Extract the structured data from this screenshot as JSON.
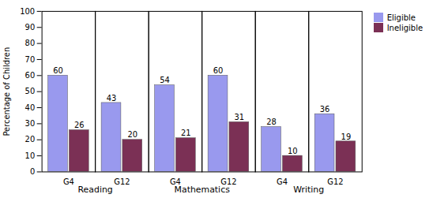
{
  "chart_data": {
    "type": "bar",
    "ylabel": "Percentage of Children",
    "groups": [
      "Reading",
      "Mathematics",
      "Writing"
    ],
    "categories": [
      "G4",
      "G12",
      "G4",
      "G12",
      "G4",
      "G12"
    ],
    "series": [
      {
        "name": "Eligible",
        "color": "#9999ee",
        "values": [
          60,
          43,
          54,
          60,
          28,
          36
        ]
      },
      {
        "name": "Ineligible",
        "color": "#7b3055",
        "values": [
          26,
          20,
          21,
          31,
          10,
          19
        ]
      }
    ],
    "ylim": [
      0,
      100
    ],
    "yticks": [
      0,
      10,
      20,
      30,
      40,
      50,
      60,
      70,
      80,
      90,
      100
    ],
    "data_labels": true,
    "legend": "right",
    "grid": false
  }
}
